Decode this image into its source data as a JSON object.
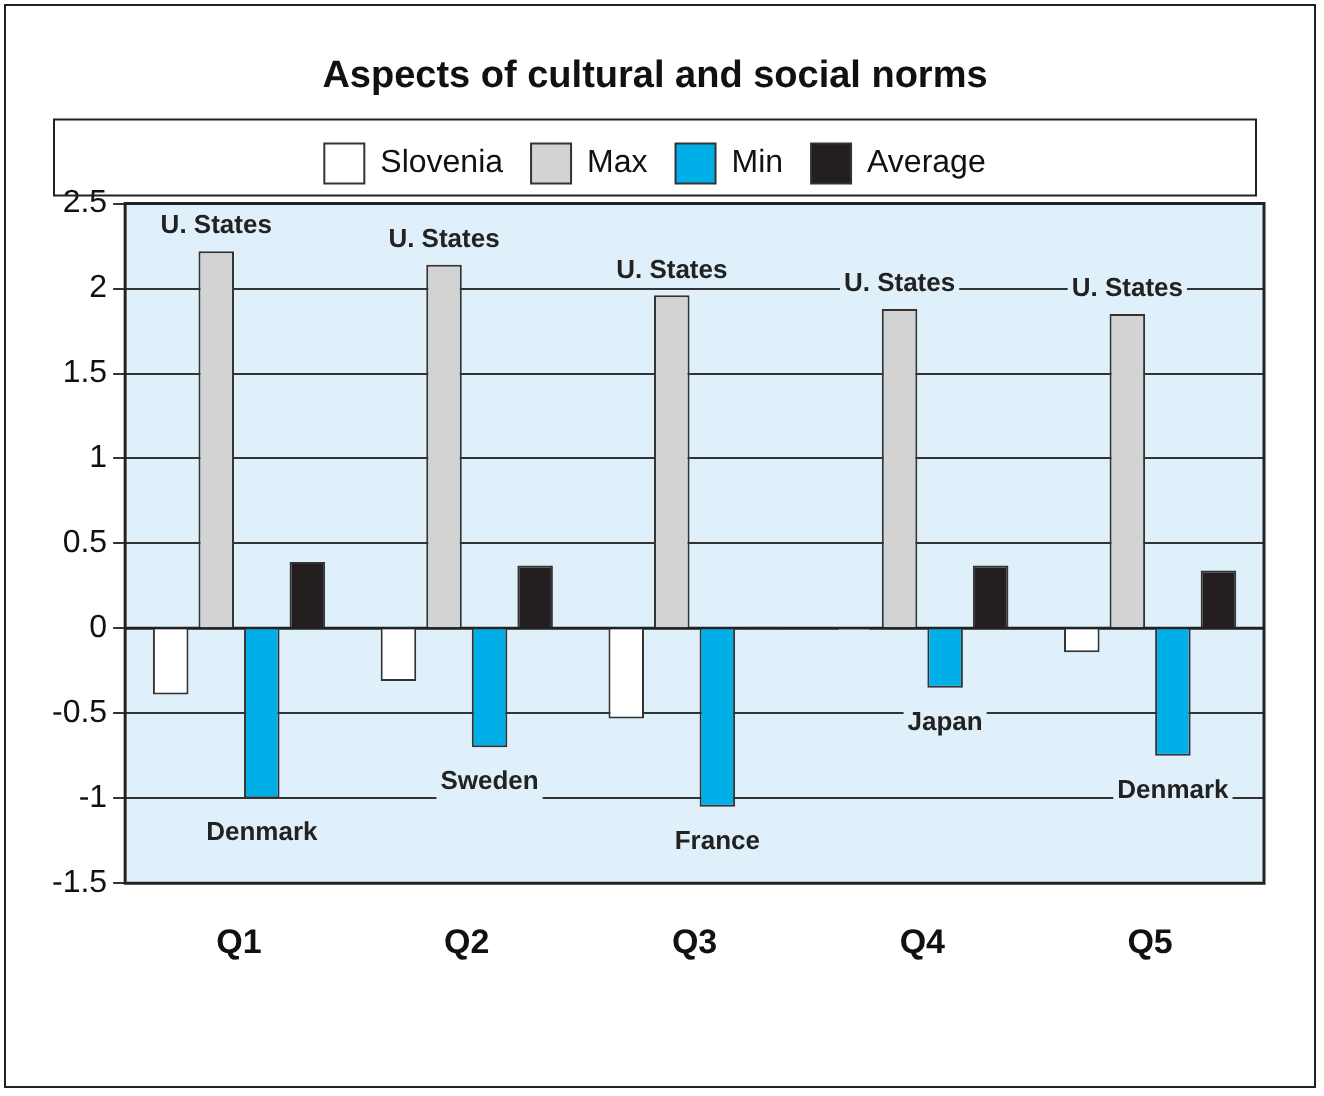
{
  "chart_data": {
    "type": "bar",
    "title": "Aspects of cultural and social norms",
    "categories": [
      "Q1",
      "Q2",
      "Q3",
      "Q4",
      "Q5"
    ],
    "series": [
      {
        "name": "Slovenia",
        "color": "#ffffff",
        "values": [
          -0.39,
          -0.31,
          -0.53,
          -0.01,
          -0.14
        ]
      },
      {
        "name": "Max",
        "color": "#d3d3d3",
        "values": [
          2.22,
          2.14,
          1.96,
          1.88,
          1.85
        ]
      },
      {
        "name": "Min",
        "color": "#00aee8",
        "values": [
          -1.0,
          -0.7,
          -1.05,
          -0.35,
          -0.75
        ]
      },
      {
        "name": "Average",
        "color": "#231f20",
        "values": [
          0.39,
          0.37,
          0.01,
          0.37,
          0.34
        ]
      }
    ],
    "ylim": [
      -1.5,
      2.5
    ],
    "yticks": [
      -1.5,
      -1,
      -0.5,
      0,
      0.5,
      1,
      1.5,
      2,
      2.5
    ],
    "grid": "y",
    "legend": "top",
    "annotations": [
      {
        "text": "U. States",
        "x": "Q1",
        "y": 2.22
      },
      {
        "text": "U. States",
        "x": "Q2",
        "y": 2.14
      },
      {
        "text": "U. States",
        "x": "Q3",
        "y": 1.96
      },
      {
        "text": "U. States",
        "x": "Q4",
        "y": 1.88
      },
      {
        "text": "U. States",
        "x": "Q5",
        "y": 1.85
      },
      {
        "text": "Denmark",
        "x": "Q1",
        "y": -1.0
      },
      {
        "text": "Sweden",
        "x": "Q2",
        "y": -0.7
      },
      {
        "text": "France",
        "x": "Q3",
        "y": -1.05
      },
      {
        "text": "Japan",
        "x": "Q4",
        "y": -0.35
      },
      {
        "text": "Denmark",
        "x": "Q5",
        "y": -0.75
      }
    ]
  }
}
